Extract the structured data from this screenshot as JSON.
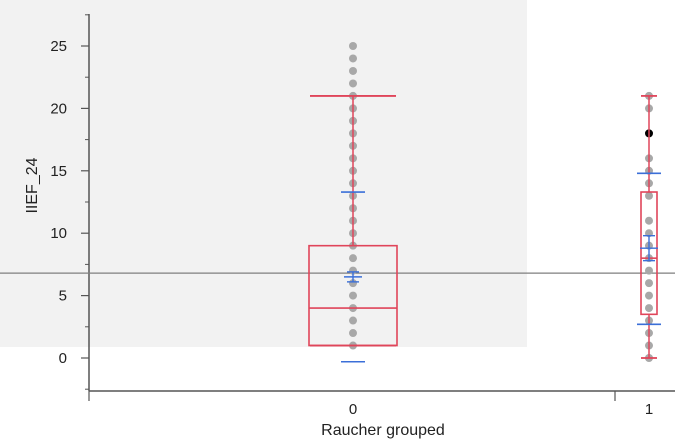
{
  "chart_data": {
    "type": "box",
    "title": "",
    "xlabel": "Raucher grouped",
    "ylabel": "IIEF_24",
    "ylim": [
      -2.5,
      27.5
    ],
    "yticks": [
      0,
      5,
      10,
      15,
      20,
      25
    ],
    "grand_mean": 6.8,
    "groups": [
      {
        "name": "0",
        "points": [
          1,
          2,
          3,
          4,
          5,
          6,
          7,
          8,
          9,
          10,
          11,
          12,
          13,
          14,
          15,
          16,
          17,
          18,
          19,
          20,
          21,
          22,
          23,
          24,
          25
        ],
        "outliers": [],
        "q1": 1,
        "median": 4,
        "q3": 9,
        "whisker_low": 1,
        "whisker_high": 21,
        "mean": 6.5,
        "mean_ci": [
          6.1,
          6.9
        ],
        "sd_low": -0.3,
        "sd_high": 13.3
      },
      {
        "name": "1",
        "points": [
          0,
          1,
          2,
          3,
          4,
          5,
          6,
          7,
          8,
          9,
          10,
          11,
          13,
          14,
          15,
          16,
          20,
          21
        ],
        "outliers": [
          18
        ],
        "q1": 3.5,
        "median": 8,
        "q3": 13.3,
        "whisker_low": 0,
        "whisker_high": 21,
        "mean": 8.8,
        "mean_ci": [
          7.8,
          9.8
        ],
        "sd_low": 2.7,
        "sd_high": 14.8
      }
    ],
    "colors": {
      "box": "#e0455a",
      "sd": "#3b6fd8",
      "points": "#a8a8a8",
      "outlier": "#000000",
      "mean_line": "#7f7f7f",
      "axis": "#555555"
    }
  }
}
